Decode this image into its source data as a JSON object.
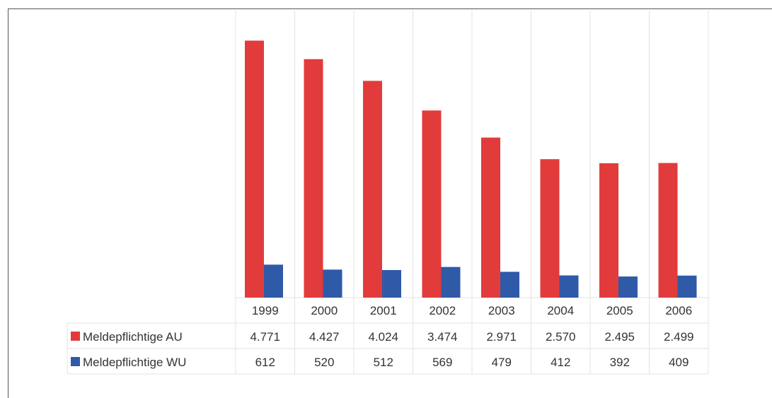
{
  "chart_data": {
    "type": "bar",
    "categories": [
      "1999",
      "2000",
      "2001",
      "2002",
      "2003",
      "2004",
      "2005",
      "2006"
    ],
    "series": [
      {
        "name": "Meldepflichtige AU",
        "color": "#e23b3b",
        "values": [
          4771,
          4427,
          4024,
          3474,
          2971,
          2570,
          2495,
          2499
        ],
        "labels": [
          "4.771",
          "4.427",
          "4.024",
          "3.474",
          "2.971",
          "2.570",
          "2.495",
          "2.499"
        ]
      },
      {
        "name": "Meldepflichtige WU",
        "color": "#2f5aa8",
        "values": [
          612,
          520,
          512,
          569,
          479,
          412,
          392,
          409
        ],
        "labels": [
          "612",
          "520",
          "512",
          "569",
          "479",
          "412",
          "392",
          "409"
        ]
      }
    ],
    "ylim": [
      0,
      5000
    ],
    "legend": "data-table-rows",
    "grid": false
  }
}
